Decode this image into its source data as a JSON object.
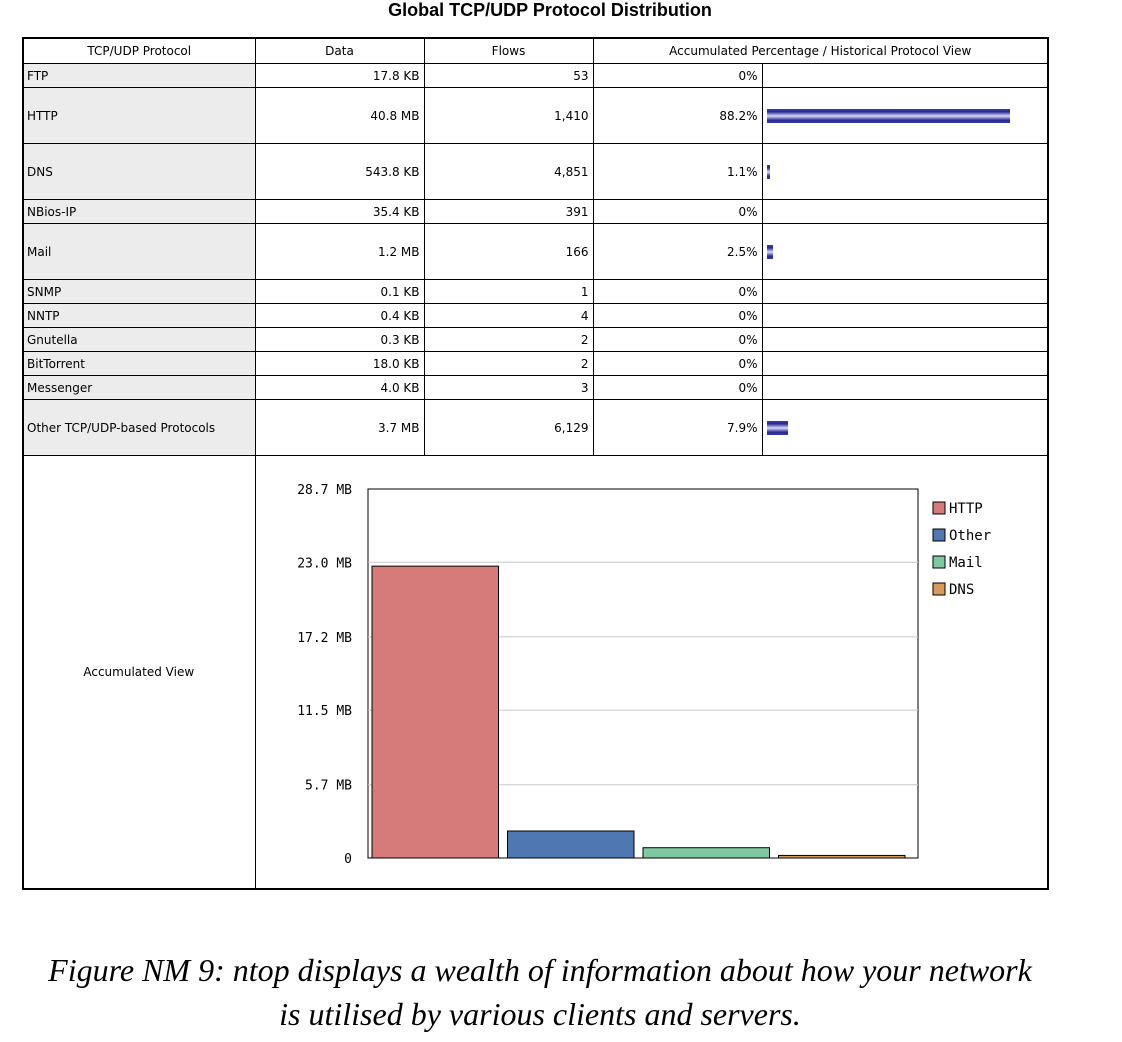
{
  "title": "Global TCP/UDP Protocol Distribution",
  "table": {
    "headers": [
      "TCP/UDP Protocol",
      "Data",
      "Flows",
      "Accumulated Percentage / Historical Protocol View"
    ],
    "rows": [
      {
        "protocol": "FTP",
        "data": "17.8 KB",
        "flows": "53",
        "percent": "0%",
        "bar": 0
      },
      {
        "protocol": "HTTP",
        "data": "40.8 MB",
        "flows": "1,410",
        "percent": "88.2%",
        "bar": 88.2
      },
      {
        "protocol": "DNS",
        "data": "543.8 KB",
        "flows": "4,851",
        "percent": "1.1%",
        "bar": 1.1
      },
      {
        "protocol": "NBios-IP",
        "data": "35.4 KB",
        "flows": "391",
        "percent": "0%",
        "bar": 0
      },
      {
        "protocol": "Mail",
        "data": "1.2 MB",
        "flows": "166",
        "percent": "2.5%",
        "bar": 2.5
      },
      {
        "protocol": "SNMP",
        "data": "0.1 KB",
        "flows": "1",
        "percent": "0%",
        "bar": 0
      },
      {
        "protocol": "NNTP",
        "data": "0.4 KB",
        "flows": "4",
        "percent": "0%",
        "bar": 0
      },
      {
        "protocol": "Gnutella",
        "data": "0.3 KB",
        "flows": "2",
        "percent": "0%",
        "bar": 0
      },
      {
        "protocol": "BitTorrent",
        "data": "18.0 KB",
        "flows": "2",
        "percent": "0%",
        "bar": 0
      },
      {
        "protocol": "Messenger",
        "data": "4.0 KB",
        "flows": "3",
        "percent": "0%",
        "bar": 0
      },
      {
        "protocol": "Other TCP/UDP-based Protocols",
        "data": "3.7 MB",
        "flows": "6,129",
        "percent": "7.9%",
        "bar": 7.9
      }
    ],
    "chart_label": "Accumulated View"
  },
  "chart_data": {
    "type": "bar",
    "categories": [
      "HTTP",
      "Other",
      "Mail",
      "DNS"
    ],
    "values": [
      22.7,
      2.1,
      0.8,
      0.2
    ],
    "colors": [
      "#d77a7a",
      "#4f78b3",
      "#7ec9a1",
      "#d89a5a"
    ],
    "yticks": [
      "0",
      "5.7 MB",
      "11.5 MB",
      "17.2 MB",
      "23.0 MB",
      "28.7 MB"
    ],
    "ytick_values": [
      0,
      5.7,
      11.5,
      17.2,
      23.0,
      28.7
    ],
    "ylim": [
      0,
      28.7
    ],
    "legend": [
      "HTTP",
      "Other",
      "Mail",
      "DNS"
    ],
    "legend_position": "right",
    "grid": true
  },
  "caption": {
    "line1": "Figure NM 9: ntop displays a wealth of information about how your network",
    "line2": "is utilised by various clients and servers."
  }
}
